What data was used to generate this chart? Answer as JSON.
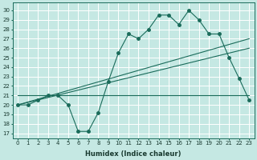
{
  "title": "",
  "xlabel": "Humidex (Indice chaleur)",
  "xlim": [
    -0.5,
    23.5
  ],
  "ylim": [
    16.5,
    30.8
  ],
  "yticks": [
    17,
    18,
    19,
    20,
    21,
    22,
    23,
    24,
    25,
    26,
    27,
    28,
    29,
    30
  ],
  "xticks": [
    0,
    1,
    2,
    3,
    4,
    5,
    6,
    7,
    8,
    9,
    10,
    11,
    12,
    13,
    14,
    15,
    16,
    17,
    18,
    19,
    20,
    21,
    22,
    23
  ],
  "bg_color": "#c5e8e3",
  "grid_color": "#ffffff",
  "line_color": "#1a6b5a",
  "main_line_x": [
    0,
    1,
    2,
    3,
    4,
    5,
    6,
    7,
    8,
    9,
    10,
    11,
    12,
    13,
    14,
    15,
    16,
    17,
    18,
    19,
    20,
    21,
    22,
    23
  ],
  "main_line_y": [
    20.0,
    20.0,
    20.5,
    21.0,
    21.0,
    20.0,
    17.2,
    17.2,
    19.2,
    22.5,
    25.5,
    27.5,
    27.0,
    28.0,
    29.5,
    29.5,
    28.5,
    30.0,
    29.0,
    27.5,
    27.5,
    25.0,
    22.8,
    20.5
  ],
  "trend_line1_pts": [
    [
      0,
      20.0
    ],
    [
      23,
      27.0
    ]
  ],
  "trend_line2_pts": [
    [
      0,
      20.0
    ],
    [
      23,
      26.0
    ]
  ],
  "flat_line_pts": [
    [
      0,
      21.0
    ],
    [
      23,
      21.0
    ]
  ],
  "marker": "o",
  "markersize": 2.5,
  "linewidth": 0.8,
  "xlabel_fontsize": 6,
  "tick_fontsize": 5,
  "tick_labelcolor": "#1a3a30",
  "spine_color": "#1a6b5a"
}
